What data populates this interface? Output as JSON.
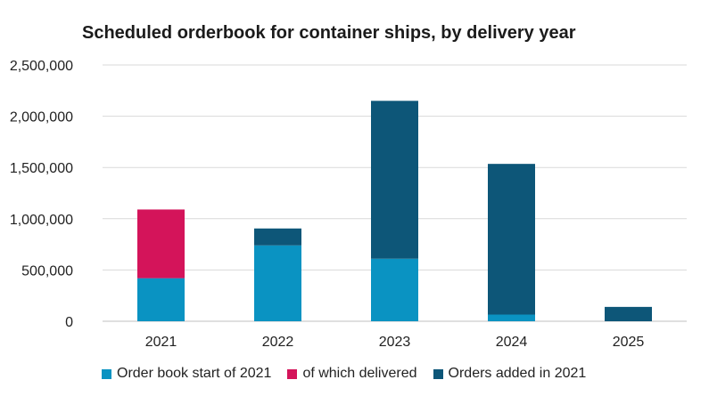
{
  "chart_data": {
    "type": "bar",
    "stacked": true,
    "title": "Scheduled orderbook for container ships, by delivery year",
    "xlabel": "",
    "ylabel": "",
    "categories": [
      "2021",
      "2022",
      "2023",
      "2024",
      "2025"
    ],
    "ylim": [
      0,
      2500000
    ],
    "yticks": [
      0,
      500000,
      1000000,
      1500000,
      2000000,
      2500000
    ],
    "ytick_labels": [
      "0",
      "500,000",
      "1,000,000",
      "1,500,000",
      "2,000,000",
      "2,500,000"
    ],
    "grid": true,
    "legend_position": "bottom",
    "series": [
      {
        "name": "Order book start of 2021",
        "color": "#0a93c2",
        "values": [
          420000,
          740000,
          610000,
          65000,
          0
        ]
      },
      {
        "name": "of which delivered",
        "color": "#d4145a",
        "values": [
          670000,
          0,
          0,
          0,
          0
        ]
      },
      {
        "name": "Orders added in 2021",
        "color": "#0d5678",
        "values": [
          0,
          165000,
          1540000,
          1470000,
          140000
        ]
      }
    ]
  }
}
